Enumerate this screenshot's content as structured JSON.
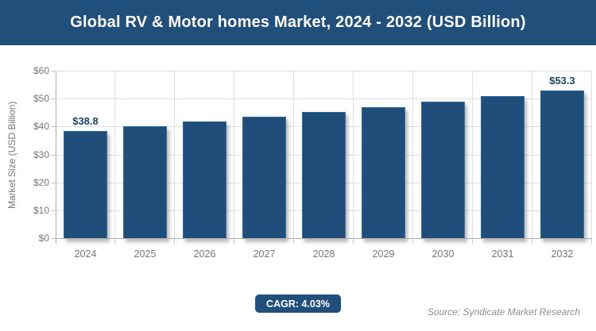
{
  "chart_data": {
    "type": "bar",
    "title": "Global RV & Motor homes Market, 2024 - 2032 (USD Billion)",
    "categories": [
      "2024",
      "2025",
      "2026",
      "2027",
      "2028",
      "2029",
      "2030",
      "2031",
      "2032"
    ],
    "values": [
      38.8,
      40.4,
      42.0,
      43.7,
      45.4,
      47.3,
      49.2,
      51.2,
      53.3
    ],
    "value_labels": [
      {
        "index": 0,
        "text": "$38.8"
      },
      {
        "index": 8,
        "text": "$53.3"
      }
    ],
    "xlabel": "",
    "ylabel": "Market Size (USD Billion)",
    "ylim": [
      0,
      60
    ],
    "ytick_step": 10,
    "ytick_labels": [
      "$0",
      "$10",
      "$20",
      "$30",
      "$40",
      "$50",
      "$60"
    ],
    "grid": true,
    "legend": "none"
  },
  "colors": {
    "primary_blue": "#214F7C",
    "bar_fill": "#1F4E7B",
    "bar_border": "#2F6FA3",
    "title_text": "#FFFFFF",
    "axis_text": "#767676",
    "gridline": "#E0E0E0",
    "axis_line": "#ADADAD",
    "tick_mark": "#C6C6C6",
    "value_label_text": "#1D4466",
    "source_text": "#8E8E8E"
  },
  "footer": {
    "cagr_label": "CAGR: 4.03%",
    "source": "Source: Syndicate Market Research"
  }
}
